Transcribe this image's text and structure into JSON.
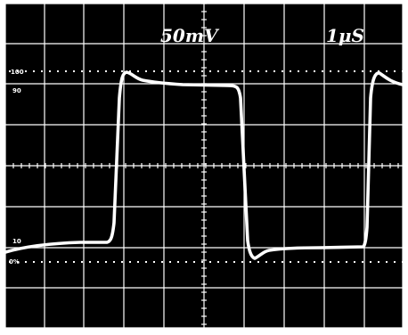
{
  "volts_per_div_label": "50mV",
  "time_per_div_label": "1μS",
  "scale_labels": {
    "top_100": "100",
    "top_90": "90",
    "bottom_10": "10",
    "bottom_0": "0%"
  },
  "colors": {
    "screen": "#000000",
    "frame": "#ffffff",
    "graticule": "#ffffff",
    "trace": "#ffffff"
  }
}
